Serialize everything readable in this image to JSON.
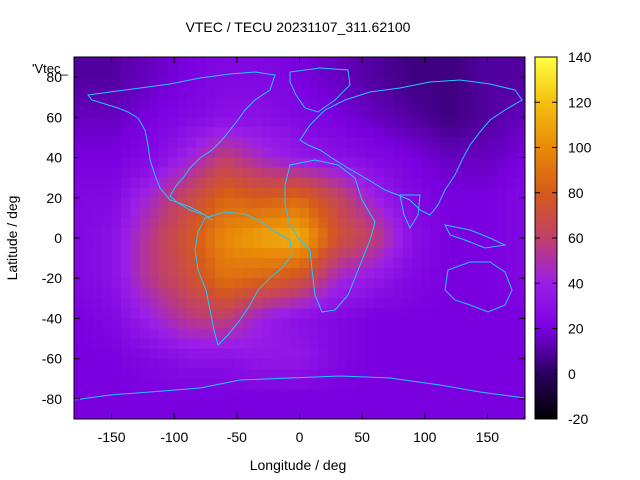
{
  "chart_data": {
    "type": "heatmap",
    "title": "VTEC / TECU 20231107_311.62100",
    "xlabel": "Longitude / deg",
    "ylabel": "Latitude / deg",
    "key_label": "'Vtec_",
    "xlim": [
      -180,
      180
    ],
    "ylim": [
      -90,
      90
    ],
    "x_ticks": [
      -150,
      -100,
      -50,
      0,
      50,
      100,
      150
    ],
    "y_ticks": [
      -80,
      -60,
      -40,
      -20,
      0,
      20,
      40,
      60,
      80
    ],
    "colorbar": {
      "range": [
        -20,
        140
      ],
      "ticks": [
        -20,
        0,
        20,
        40,
        60,
        80,
        100,
        120,
        140
      ],
      "palette": [
        "#000000",
        "#2a0060",
        "#7a00e0",
        "#9b1fe8",
        "#c0406a",
        "#d65a1a",
        "#e88a08",
        "#f5c010",
        "#ffff40"
      ]
    },
    "grid": {
      "lons": [
        -180,
        -150,
        -120,
        -90,
        -60,
        -30,
        0,
        30,
        60,
        90,
        120,
        150,
        180
      ],
      "lats": [
        80,
        60,
        40,
        20,
        0,
        -20,
        -40,
        -60,
        -80
      ],
      "values": [
        [
          10,
          10,
          15,
          20,
          25,
          25,
          20,
          15,
          10,
          5,
          5,
          10,
          10
        ],
        [
          15,
          15,
          20,
          25,
          30,
          30,
          25,
          20,
          15,
          10,
          5,
          10,
          15
        ],
        [
          20,
          20,
          25,
          40,
          60,
          45,
          35,
          30,
          25,
          20,
          15,
          15,
          20
        ],
        [
          25,
          25,
          45,
          65,
          85,
          80,
          85,
          65,
          40,
          25,
          20,
          20,
          25
        ],
        [
          25,
          30,
          55,
          75,
          100,
          110,
          115,
          75,
          60,
          30,
          20,
          20,
          25
        ],
        [
          25,
          30,
          55,
          70,
          90,
          85,
          75,
          45,
          35,
          25,
          20,
          20,
          25
        ],
        [
          20,
          25,
          40,
          55,
          60,
          40,
          30,
          25,
          20,
          20,
          20,
          20,
          20
        ],
        [
          20,
          20,
          25,
          30,
          30,
          35,
          35,
          25,
          20,
          20,
          20,
          20,
          20
        ],
        [
          20,
          20,
          20,
          20,
          20,
          20,
          20,
          20,
          20,
          20,
          20,
          20,
          20
        ]
      ]
    }
  }
}
